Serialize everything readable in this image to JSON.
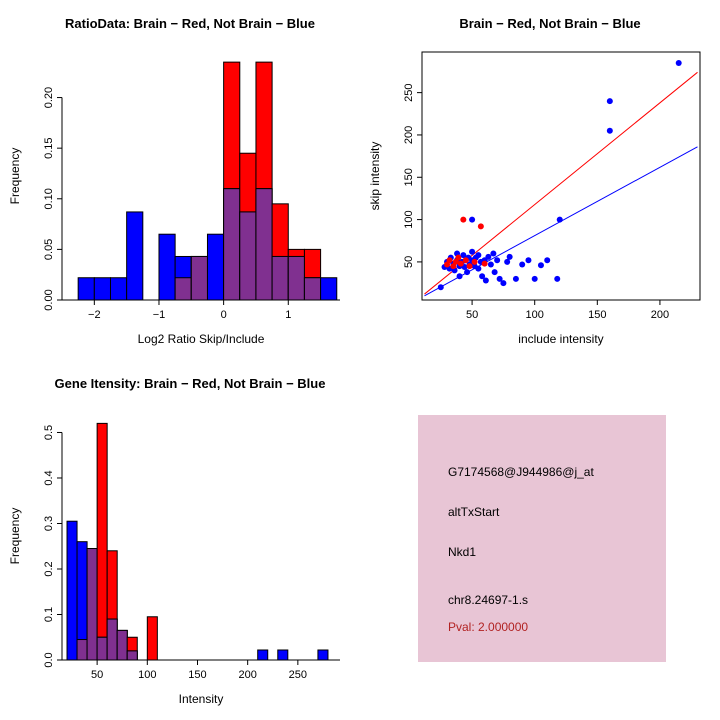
{
  "page": {
    "background": "#FFFFFF"
  },
  "chart_data": [
    {
      "type": "bar",
      "variant": "overlaid-histogram",
      "title": "RatioData: Brain − Red, Not Brain − Blue",
      "xlabel": "Log2 Ratio Skip/Include",
      "ylabel": "Frequency",
      "xlim": [
        -2.5,
        1.8
      ],
      "ylim": [
        0,
        0.245
      ],
      "xtick_values": [
        -2,
        -1,
        0,
        1
      ],
      "xtick_labels": [
        "−2",
        "−1",
        "0",
        "1"
      ],
      "ytick_values": [
        0,
        0.05,
        0.1,
        0.15,
        0.2
      ],
      "ytick_labels": [
        "0.00",
        "0.05",
        "0.10",
        "0.15",
        "0.20"
      ],
      "bin_start": -2.25,
      "bin_width": 0.25,
      "overlap_color": "#803090",
      "series": [
        {
          "name": "Brain (red)",
          "color": "#FF0000",
          "values": [
            0,
            0,
            0,
            0,
            0,
            0,
            0.022,
            0.043,
            0,
            0.235,
            0.145,
            0.235,
            0.095,
            0.05,
            0.05,
            0
          ]
        },
        {
          "name": "Not Brain (blue)",
          "color": "#0000FF",
          "values": [
            0.022,
            0.022,
            0.022,
            0.087,
            0,
            0.065,
            0.043,
            0.043,
            0.065,
            0.11,
            0.087,
            0.11,
            0.043,
            0.043,
            0.022,
            0.022
          ]
        }
      ]
    },
    {
      "type": "scatter",
      "title": "Brain − Red, Not Brain − Blue",
      "xlabel": "include intensity",
      "ylabel": "skip intensity",
      "xlim": [
        10,
        232
      ],
      "ylim": [
        5,
        298
      ],
      "xtick_values": [
        50,
        100,
        150,
        200
      ],
      "xtick_labels": [
        "50",
        "100",
        "150",
        "200"
      ],
      "ytick_values": [
        50,
        100,
        150,
        200,
        250
      ],
      "ytick_labels": [
        "50",
        "100",
        "150",
        "200",
        "250"
      ],
      "lines": [
        {
          "name": "brain-fit",
          "color": "#FF0000",
          "from": [
            12,
            12
          ],
          "to": [
            230,
            274
          ]
        },
        {
          "name": "not-brain-fit",
          "color": "#0000FF",
          "from": [
            12,
            10
          ],
          "to": [
            230,
            186
          ]
        }
      ],
      "series": [
        {
          "name": "Not Brain (blue)",
          "color": "#0000FF",
          "points": [
            [
              25,
              20
            ],
            [
              28,
              44
            ],
            [
              30,
              50
            ],
            [
              32,
              42
            ],
            [
              33,
              55
            ],
            [
              35,
              48
            ],
            [
              36,
              40
            ],
            [
              38,
              52
            ],
            [
              38,
              60
            ],
            [
              40,
              45
            ],
            [
              40,
              33
            ],
            [
              42,
              50
            ],
            [
              43,
              58
            ],
            [
              44,
              44
            ],
            [
              45,
              52
            ],
            [
              46,
              38
            ],
            [
              47,
              55
            ],
            [
              48,
              47
            ],
            [
              50,
              52
            ],
            [
              50,
              62
            ],
            [
              50,
              100
            ],
            [
              52,
              45
            ],
            [
              53,
              55
            ],
            [
              55,
              42
            ],
            [
              55,
              58
            ],
            [
              57,
              50
            ],
            [
              58,
              33
            ],
            [
              60,
              52
            ],
            [
              61,
              28
            ],
            [
              63,
              56
            ],
            [
              65,
              47
            ],
            [
              67,
              60
            ],
            [
              68,
              38
            ],
            [
              70,
              52
            ],
            [
              72,
              30
            ],
            [
              75,
              25
            ],
            [
              78,
              50
            ],
            [
              80,
              56
            ],
            [
              85,
              30
            ],
            [
              90,
              47
            ],
            [
              95,
              52
            ],
            [
              100,
              30
            ],
            [
              105,
              46
            ],
            [
              110,
              52
            ],
            [
              118,
              30
            ],
            [
              120,
              100
            ],
            [
              160,
              205
            ],
            [
              160,
              240
            ],
            [
              215,
              285
            ]
          ]
        },
        {
          "name": "Brain (red)",
          "color": "#FF0000",
          "points": [
            [
              30,
              47
            ],
            [
              32,
              52
            ],
            [
              35,
              45
            ],
            [
              37,
              50
            ],
            [
              39,
              55
            ],
            [
              41,
              48
            ],
            [
              43,
              100
            ],
            [
              45,
              52
            ],
            [
              48,
              45
            ],
            [
              52,
              50
            ],
            [
              57,
              92
            ],
            [
              60,
              48
            ]
          ]
        }
      ]
    },
    {
      "type": "bar",
      "variant": "overlaid-histogram",
      "title": "Gene Itensity: Brain − Red, Not Brain − Blue",
      "xlabel": "Intensity",
      "ylabel": "Frequency",
      "xlim": [
        15,
        292
      ],
      "ylim": [
        0,
        0.545
      ],
      "xtick_values": [
        50,
        100,
        150,
        200,
        250
      ],
      "xtick_labels": [
        "50",
        "100",
        "150",
        "200",
        "250"
      ],
      "ytick_values": [
        0,
        0.1,
        0.2,
        0.3,
        0.4,
        0.5
      ],
      "ytick_labels": [
        "0.0",
        "0.1",
        "0.2",
        "0.3",
        "0.4",
        "0.5"
      ],
      "bin_start": 20,
      "bin_width": 10,
      "overlap_color": "#803090",
      "series": [
        {
          "name": "Brain (red)",
          "color": "#FF0000",
          "values": [
            0,
            0.045,
            0.245,
            0.52,
            0.24,
            0.065,
            0.05,
            0,
            0.095,
            0,
            0,
            0,
            0,
            0,
            0,
            0,
            0,
            0,
            0,
            0,
            0,
            0,
            0,
            0,
            0,
            0
          ]
        },
        {
          "name": "Not Brain (blue)",
          "color": "#0000FF",
          "values": [
            0.305,
            0.26,
            0.245,
            0.05,
            0.09,
            0.065,
            0.02,
            0,
            0,
            0,
            0,
            0,
            0,
            0,
            0,
            0,
            0,
            0,
            0,
            0.022,
            0,
            0.022,
            0,
            0,
            0,
            0.022
          ]
        }
      ]
    }
  ],
  "info_box": {
    "background": "#E8C5D5",
    "pval_color": "#B22222",
    "lines": {
      "probe": "G7174568@J944986@j_at",
      "event": "altTxStart",
      "gene": "Nkd1",
      "location": "chr8.24697-1.s",
      "pval": "Pval: 2.000000"
    }
  }
}
